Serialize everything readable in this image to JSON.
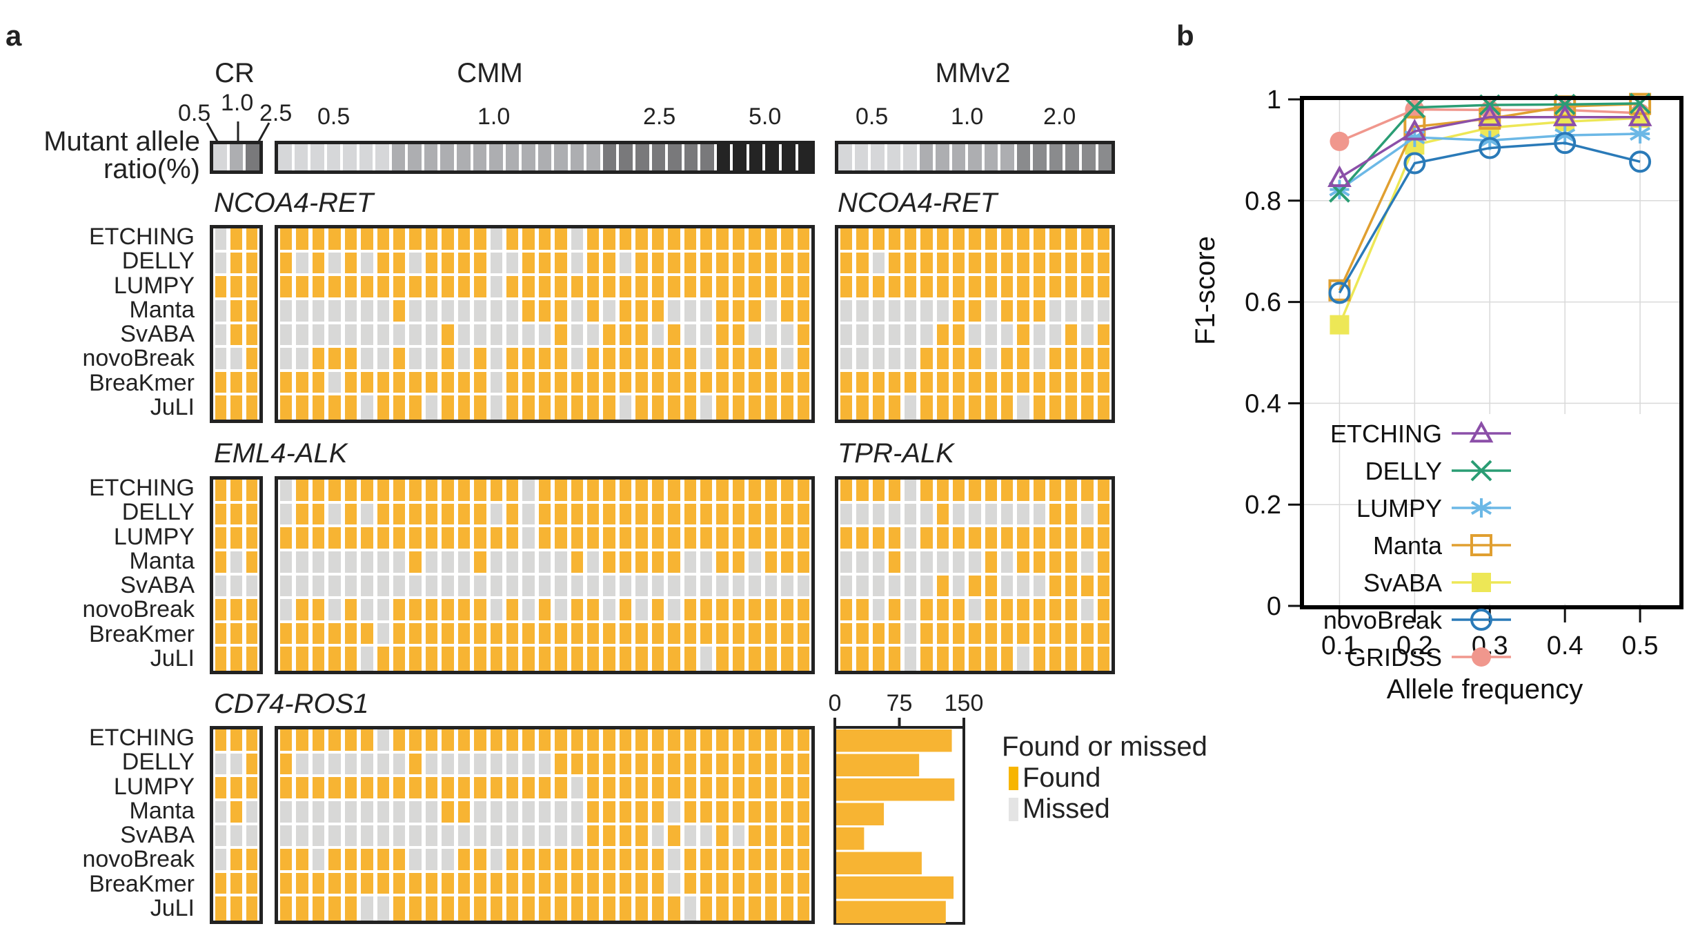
{
  "panel_a": {
    "letter": "a",
    "colorbar_label_line1": "Mutant allele",
    "colorbar_label_line2": "ratio(%)",
    "groups": [
      {
        "id": "CR",
        "title": "CR",
        "columns": 3,
        "ratio_ticks": [
          "0.5",
          "1.0",
          "2.5"
        ],
        "ratio_per_column": [
          "0.5",
          "1.0",
          "2.5"
        ]
      },
      {
        "id": "CMM",
        "title": "CMM",
        "columns": 33,
        "ratio_ticks": [
          "0.5",
          "1.0",
          "2.5",
          "5.0"
        ],
        "ratio_per_column": [
          "0.5",
          "0.5",
          "0.5",
          "0.5",
          "0.5",
          "0.5",
          "0.5",
          "1.0",
          "1.0",
          "1.0",
          "1.0",
          "1.0",
          "1.0",
          "1.0",
          "1.0",
          "1.0",
          "1.0",
          "1.0",
          "1.0",
          "1.0",
          "2.5",
          "2.5",
          "2.5",
          "2.5",
          "2.5",
          "2.5",
          "2.5",
          "5.0",
          "5.0",
          "5.0",
          "5.0",
          "5.0",
          "5.0"
        ]
      },
      {
        "id": "MMv2",
        "title": "MMv2",
        "columns": 17,
        "ratio_ticks": [
          "0.5",
          "1.0",
          "2.0"
        ],
        "ratio_per_column": [
          "0.5",
          "0.5",
          "0.5",
          "0.5",
          "0.5",
          "1.0",
          "1.0",
          "1.0",
          "1.0",
          "1.0",
          "1.0",
          "2.0",
          "2.0",
          "2.0",
          "2.0",
          "2.0",
          "2.0"
        ]
      }
    ],
    "ratio_colors": {
      "0.5": "#d6d7d9",
      "1.0": "#adaeb1",
      "2.0": "#8a8b8d",
      "2.5": "#79797b",
      "5.0": "#242424"
    },
    "tools": [
      "ETCHING",
      "DELLY",
      "LUMPY",
      "Manta",
      "SvABA",
      "novoBreak",
      "BreaKmer",
      "JuLI"
    ],
    "status_colors": {
      "found": "#f7b433",
      "missed": "#d8d8d7"
    },
    "legend": {
      "title": "Found or missed",
      "found_label": "Found",
      "missed_label": "Missed",
      "found_swatch": "#f7b500",
      "missed_swatch": "#e4e4e4"
    },
    "blocks": [
      {
        "left_title": "NCOA4-RET",
        "right_title": "NCOA4-RET",
        "CR": [
          "GOO",
          "GOO",
          "OOO",
          "GOO",
          "GOO",
          "GGO",
          "OOO",
          "OOO"
        ],
        "CMM": [
          "OOOOOOOOOOOOOGOOOOGOOOOOOOOOOOOOO",
          "OGOGOGOOGOOOOGGOOOGOOGOOOOOOOOOOO",
          "OOOOOOOOOOOOOGOOOOOOOOOOOOOOOOOOO",
          "GGGGGGGOGGGGGGGOOOGOGOOOGGGOOOGOO",
          "GGGGGGGGGGOGGGGGGOGGOOOGOGGOOGGGO",
          "GGOOOGGOGGOGOGOOOOGOOOOOOOGOOOOGO",
          "OOOGOOOOOOOOOGOOOOOOOOOOOOOOOOOOO",
          "OOOOOGOOOGOOOGOOOOOOOGOOOOGOOOOOO"
        ],
        "MMv2": [
          "OOOOOOOOOOOOOOOOO",
          "OOGOOOOOOOOOOOOOO",
          "OOOOOOOOOOOOOOOOO",
          "GGGGGGGOOGOOOGGGG",
          "GGGGGGOOGGGOGGOGO",
          "GGGGGOOOOGOOGOOOO",
          "OOOOOOOOOOOOOOOOO",
          "OOOOGOOOOOOGOOOOO"
        ]
      },
      {
        "left_title": "EML4-ALK",
        "right_title": "TPR-ALK",
        "CR": [
          "OOO",
          "OOO",
          "OOO",
          "OGO",
          "GGG",
          "OOO",
          "OOO",
          "OOO"
        ],
        "CMM": [
          "GOOOOOOOOOOOOOOGOOOOOOOOOOOOOOOOO",
          "GOOGOGOOOOOOOGOGOOOOOOOOOOOOOOOOO",
          "OOOOOOOOOOOOOOOGOOOOOOOOOOOOOOOOO",
          "GGGGGGGGOGGGOGGGGGOGOOOOOGGOOGOOO",
          "GGGGGGGGGGGGGGGGGGGGGGGGGGGGGGGGG",
          "GOOGOGGOOOOOOGOGOGOOGOGOGOOOOOOOO",
          "OOOOOOGOOOOOOOOOOOOOOOOOOOOOOOOOO",
          "OOOOOGOOOOOOOOOOOOOOOOOOOOGOOOOOO"
        ],
        "MMv2": [
          "OOOOGOOOOOOOOOOOO",
          "GGGGGGOGGGGGGOOGO",
          "OOOOGOOOOOOOOOOOO",
          "GGGOGGGGGOGOOOOGO",
          "GGGGGGOGOOGGGOOOO",
          "OOGOGOOOGOOOOOOGO",
          "OOOOGOOOOOOOOOOOO",
          "OOOOGOOOOOOGOOOOO"
        ]
      },
      {
        "left_title": "CD74-ROS1",
        "right_title": "",
        "CR": [
          "OOO",
          "GGO",
          "OOO",
          "GOG",
          "GGG",
          "GOO",
          "OOO",
          "OOO"
        ],
        "CMM": [
          "OOOOOOGOOOOOOOOOOOOOOOOOOOOOOOOOO",
          "OGGGGGGGOGGGGGGGGOOOOOOOOOOOOOOOO",
          "OOOOOOOOOOOOOOOOOOGOOOOOOOOOOOOOO",
          "GGGGGGGGGGOOGGGGGGGOOOOOGOOOOOOOO",
          "GGGGGGGGGGGGGGGGGGGOOOOGOGGOGOOOO",
          "OOGOOOOOGGGOOGOOOOOOOOOOGOOOOOOOO",
          "OOOOOOOOOOOOOOOOOOOOOOOOGOOOOOOOO",
          "OOOOOGGOOOOOOOOOOOOOOOOOOGOOOOOOO"
        ]
      }
    ],
    "bar_chart": {
      "ticks": [
        "0",
        "75",
        "150"
      ],
      "xlim": [
        0,
        150
      ],
      "values": [
        136,
        98,
        139,
        57,
        34,
        101,
        138,
        129
      ]
    }
  },
  "chart_data": {
    "type": "line",
    "title": "",
    "panel_letter": "b",
    "xlabel": "Allele frequency",
    "ylabel": "F1-score",
    "x": [
      0.1,
      0.2,
      0.3,
      0.4,
      0.5
    ],
    "x_tick_labels": [
      "0.1",
      "0.2",
      "0.3",
      "0.4",
      "0.5"
    ],
    "y_tick_labels": [
      "0",
      "0.2",
      "0.4",
      "0.6",
      "0.8",
      "1"
    ],
    "y_ticks": [
      0,
      0.2,
      0.4,
      0.6,
      0.8,
      1.0
    ],
    "xlim": [
      0.05,
      0.555
    ],
    "ylim": [
      0,
      1.0
    ],
    "grid": true,
    "legend_position": "bottom-right",
    "series": [
      {
        "name": "ETCHING",
        "color": "#8b4fa8",
        "marker": "triangle-open",
        "values": [
          0.845,
          0.937,
          0.965,
          0.965,
          0.965
        ]
      },
      {
        "name": "DELLY",
        "color": "#2a9d74",
        "marker": "x",
        "values": [
          0.817,
          0.984,
          0.989,
          0.99,
          0.992
        ]
      },
      {
        "name": "LUMPY",
        "color": "#6cb8e6",
        "marker": "asterisk",
        "values": [
          0.822,
          0.925,
          0.919,
          0.929,
          0.932
        ]
      },
      {
        "name": "Manta",
        "color": "#e09f30",
        "marker": "square-open",
        "values": [
          0.623,
          0.946,
          0.962,
          0.986,
          0.991
        ]
      },
      {
        "name": "SvABA",
        "color": "#ede756",
        "marker": "square-filled",
        "values": [
          0.555,
          0.91,
          0.944,
          0.956,
          0.963
        ]
      },
      {
        "name": "novoBreak",
        "color": "#2a7ab8",
        "marker": "circle-open",
        "values": [
          0.618,
          0.874,
          0.904,
          0.914,
          0.877
        ]
      },
      {
        "name": "GRIDSS",
        "color": "#f0978d",
        "marker": "circle-filled",
        "values": [
          0.917,
          0.98,
          0.979,
          0.979,
          0.973
        ]
      }
    ]
  }
}
